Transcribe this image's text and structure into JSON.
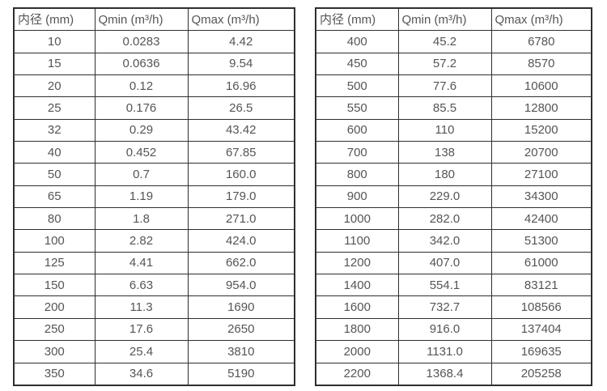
{
  "colors": {
    "background": "#ffffff",
    "border": "#2e2e2e",
    "text": "#555555"
  },
  "tables": [
    {
      "name": "diameter-flow-table-small",
      "headers": [
        "内径 (mm)",
        "Qmin (m³/h)",
        "Qmax (m³/h)"
      ],
      "rows": [
        [
          "10",
          "0.0283",
          "4.42"
        ],
        [
          "15",
          "0.0636",
          "9.54"
        ],
        [
          "20",
          "0.12",
          "16.96"
        ],
        [
          "25",
          "0.176",
          "26.5"
        ],
        [
          "32",
          "0.29",
          "43.42"
        ],
        [
          "40",
          "0.452",
          "67.85"
        ],
        [
          "50",
          "0.7",
          "160.0"
        ],
        [
          "65",
          "1.19",
          "179.0"
        ],
        [
          "80",
          "1.8",
          "271.0"
        ],
        [
          "100",
          "2.82",
          "424.0"
        ],
        [
          "125",
          "4.41",
          "662.0"
        ],
        [
          "150",
          "6.63",
          "954.0"
        ],
        [
          "200",
          "11.3",
          "1690"
        ],
        [
          "250",
          "17.6",
          "2650"
        ],
        [
          "300",
          "25.4",
          "3810"
        ],
        [
          "350",
          "34.6",
          "5190"
        ]
      ]
    },
    {
      "name": "diameter-flow-table-large",
      "headers": [
        "内径 (mm)",
        "Qmin (m³/h)",
        "Qmax (m³/h)"
      ],
      "rows": [
        [
          "400",
          "45.2",
          "6780"
        ],
        [
          "450",
          "57.2",
          "8570"
        ],
        [
          "500",
          "77.6",
          "10600"
        ],
        [
          "550",
          "85.5",
          "12800"
        ],
        [
          "600",
          "110",
          "15200"
        ],
        [
          "700",
          "138",
          "20700"
        ],
        [
          "800",
          "180",
          "27100"
        ],
        [
          "900",
          "229.0",
          "34300"
        ],
        [
          "1000",
          "282.0",
          "42400"
        ],
        [
          "1100",
          "342.0",
          "51300"
        ],
        [
          "1200",
          "407.0",
          "61000"
        ],
        [
          "1400",
          "554.1",
          "83121"
        ],
        [
          "1600",
          "732.7",
          "108566"
        ],
        [
          "1800",
          "916.0",
          "137404"
        ],
        [
          "2000",
          "1131.0",
          "169635"
        ],
        [
          "2200",
          "1368.4",
          "205258"
        ]
      ]
    }
  ]
}
